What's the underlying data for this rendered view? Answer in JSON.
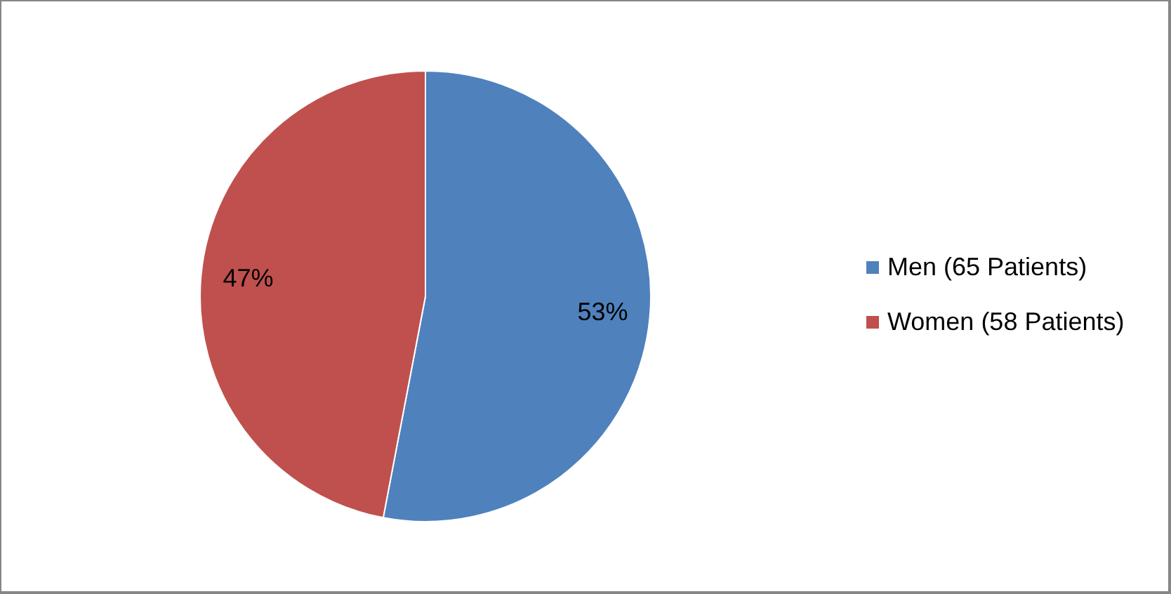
{
  "chart_data": {
    "type": "pie",
    "categories": [
      "Men (65 Patients)",
      "Women (58 Patients)"
    ],
    "values": [
      53,
      47
    ],
    "colors": [
      "#4f81bd",
      "#c0504d"
    ],
    "value_labels": [
      "53%",
      "47%"
    ],
    "legend": "right"
  }
}
